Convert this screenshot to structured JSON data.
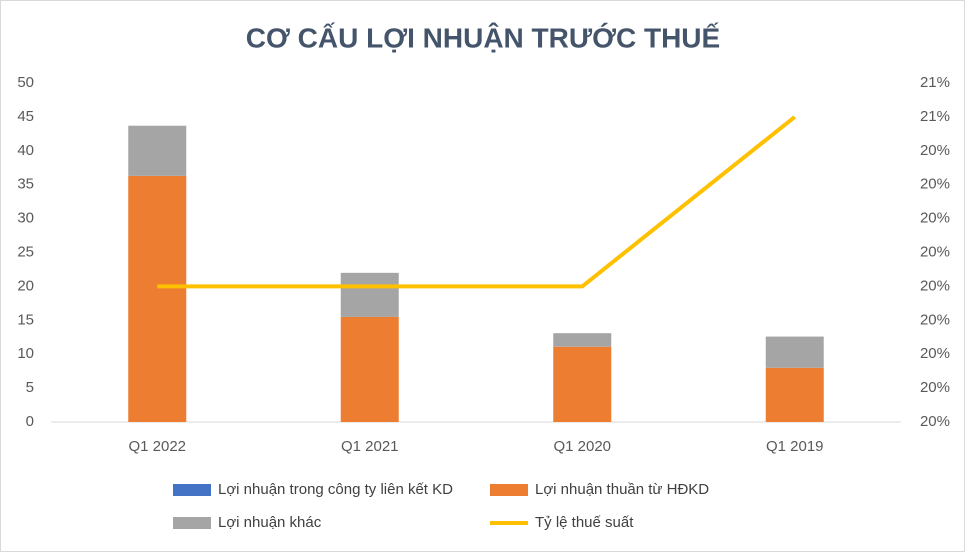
{
  "chart_data": {
    "type": "bar_line",
    "title": "CƠ CẤU LỢI NHUẬN TRƯỚC THUẾ",
    "categories": [
      "Q1 2022",
      "Q1 2021",
      "Q1 2020",
      "Q1 2019"
    ],
    "series": [
      {
        "name": "Lợi nhuận trong công ty liên kết KD",
        "color": "#4472c4",
        "type": "bar",
        "values": [
          0,
          0,
          0,
          0
        ]
      },
      {
        "name": "Lợi nhuận thuần từ HĐKD",
        "color": "#ed7d31",
        "type": "bar",
        "values": [
          36.3,
          15.5,
          11.1,
          8.0
        ]
      },
      {
        "name": "Lợi nhuận khác",
        "color": "#a5a5a5",
        "type": "bar",
        "values": [
          7.4,
          6.5,
          2.0,
          4.6
        ]
      },
      {
        "name": "Tỷ lệ thuế suất",
        "color": "#ffc000",
        "type": "line",
        "axis": "y2",
        "values": [
          20.24,
          20.24,
          20.24,
          20.54
        ]
      }
    ],
    "stacked": true,
    "ylim": [
      0,
      50
    ],
    "yticks": [
      0,
      5,
      10,
      15,
      20,
      25,
      30,
      35,
      40,
      45,
      50
    ],
    "y2lim": [
      20,
      20.6
    ],
    "y2ticks": [
      {
        "value": 20,
        "label": "20%"
      },
      {
        "value": 20.06,
        "label": "20%"
      },
      {
        "value": 20.12,
        "label": "20%"
      },
      {
        "value": 20.18,
        "label": "20%"
      },
      {
        "value": 20.24,
        "label": "20%"
      },
      {
        "value": 20.3,
        "label": "20%"
      },
      {
        "value": 20.36,
        "label": "20%"
      },
      {
        "value": 20.42,
        "label": "20%"
      },
      {
        "value": 20.48,
        "label": "20%"
      },
      {
        "value": 20.54,
        "label": "21%"
      },
      {
        "value": 20.6,
        "label": "21%"
      }
    ],
    "grid": false,
    "legend": "bottom"
  }
}
